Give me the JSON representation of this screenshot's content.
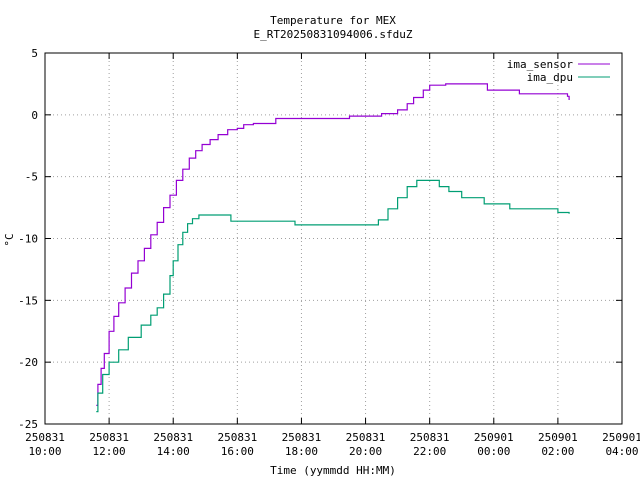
{
  "chart_data": {
    "type": "line",
    "title": "Temperature for MEX",
    "subtitle": "E_RT20250831094006.sfduZ",
    "xlabel": "Time (yymmdd HH:MM)",
    "ylabel": "°C",
    "x_unit": "hours on 2025-08-31 (24 = 2025-09-01 00:00)",
    "xlim": [
      10,
      28
    ],
    "ylim": [
      -25,
      5
    ],
    "grid": true,
    "legend_position": "top-right",
    "x_ticks": [
      {
        "x": 10,
        "date": "250831",
        "time": "10:00"
      },
      {
        "x": 12,
        "date": "250831",
        "time": "12:00"
      },
      {
        "x": 14,
        "date": "250831",
        "time": "14:00"
      },
      {
        "x": 16,
        "date": "250831",
        "time": "16:00"
      },
      {
        "x": 18,
        "date": "250831",
        "time": "18:00"
      },
      {
        "x": 20,
        "date": "250831",
        "time": "20:00"
      },
      {
        "x": 22,
        "date": "250831",
        "time": "22:00"
      },
      {
        "x": 24,
        "date": "250901",
        "time": "00:00"
      },
      {
        "x": 26,
        "date": "250901",
        "time": "02:00"
      },
      {
        "x": 28,
        "date": "250901",
        "time": "04:00"
      }
    ],
    "y_ticks": [
      {
        "v": 5,
        "label": "5"
      },
      {
        "v": 0,
        "label": "0"
      },
      {
        "v": -5,
        "label": "-5"
      },
      {
        "v": -10,
        "label": "-10"
      },
      {
        "v": -15,
        "label": "-15"
      },
      {
        "v": -20,
        "label": "-20"
      },
      {
        "v": -25,
        "label": "-25"
      }
    ],
    "series": [
      {
        "name": "ima_sensor",
        "color": "#9400d3",
        "points": [
          [
            11.6,
            -23.5
          ],
          [
            11.65,
            -21.8
          ],
          [
            11.75,
            -20.5
          ],
          [
            11.85,
            -19.3
          ],
          [
            12.0,
            -17.5
          ],
          [
            12.15,
            -16.3
          ],
          [
            12.3,
            -15.2
          ],
          [
            12.5,
            -14.0
          ],
          [
            12.7,
            -12.8
          ],
          [
            12.9,
            -11.8
          ],
          [
            13.1,
            -10.8
          ],
          [
            13.3,
            -9.7
          ],
          [
            13.5,
            -8.7
          ],
          [
            13.7,
            -7.5
          ],
          [
            13.9,
            -6.5
          ],
          [
            14.1,
            -5.3
          ],
          [
            14.3,
            -4.4
          ],
          [
            14.5,
            -3.5
          ],
          [
            14.7,
            -2.9
          ],
          [
            14.9,
            -2.4
          ],
          [
            15.15,
            -2.0
          ],
          [
            15.4,
            -1.6
          ],
          [
            15.7,
            -1.2
          ],
          [
            16.0,
            -1.1
          ],
          [
            16.2,
            -0.8
          ],
          [
            16.5,
            -0.7
          ],
          [
            17.0,
            -0.7
          ],
          [
            17.2,
            -0.3
          ],
          [
            18.0,
            -0.3
          ],
          [
            19.0,
            -0.3
          ],
          [
            19.5,
            -0.1
          ],
          [
            20.5,
            0.1
          ],
          [
            21.0,
            0.4
          ],
          [
            21.3,
            0.9
          ],
          [
            21.5,
            1.4
          ],
          [
            21.8,
            2.0
          ],
          [
            22.0,
            2.4
          ],
          [
            22.5,
            2.5
          ],
          [
            23.7,
            2.5
          ],
          [
            23.8,
            2.0
          ],
          [
            24.7,
            2.0
          ],
          [
            24.8,
            1.7
          ],
          [
            26.1,
            1.7
          ],
          [
            26.3,
            1.5
          ],
          [
            26.35,
            1.2
          ]
        ]
      },
      {
        "name": "ima_dpu",
        "color": "#009e73",
        "points": [
          [
            11.6,
            -24.0
          ],
          [
            11.65,
            -22.5
          ],
          [
            11.8,
            -21.0
          ],
          [
            12.0,
            -20.0
          ],
          [
            12.3,
            -19.0
          ],
          [
            12.6,
            -18.0
          ],
          [
            13.0,
            -17.0
          ],
          [
            13.3,
            -16.2
          ],
          [
            13.5,
            -15.6
          ],
          [
            13.7,
            -14.5
          ],
          [
            13.9,
            -13.0
          ],
          [
            14.0,
            -11.8
          ],
          [
            14.15,
            -10.5
          ],
          [
            14.3,
            -9.5
          ],
          [
            14.45,
            -8.8
          ],
          [
            14.6,
            -8.4
          ],
          [
            14.8,
            -8.1
          ],
          [
            15.7,
            -8.1
          ],
          [
            15.8,
            -8.6
          ],
          [
            17.0,
            -8.6
          ],
          [
            17.8,
            -8.9
          ],
          [
            19.0,
            -8.9
          ],
          [
            20.2,
            -8.9
          ],
          [
            20.4,
            -8.5
          ],
          [
            20.7,
            -7.6
          ],
          [
            21.0,
            -6.7
          ],
          [
            21.3,
            -5.8
          ],
          [
            21.6,
            -5.3
          ],
          [
            22.1,
            -5.3
          ],
          [
            22.3,
            -5.8
          ],
          [
            22.6,
            -6.2
          ],
          [
            23.0,
            -6.7
          ],
          [
            23.7,
            -7.2
          ],
          [
            24.5,
            -7.6
          ],
          [
            25.7,
            -7.6
          ],
          [
            26.0,
            -7.9
          ],
          [
            26.35,
            -8.0
          ]
        ]
      }
    ]
  }
}
